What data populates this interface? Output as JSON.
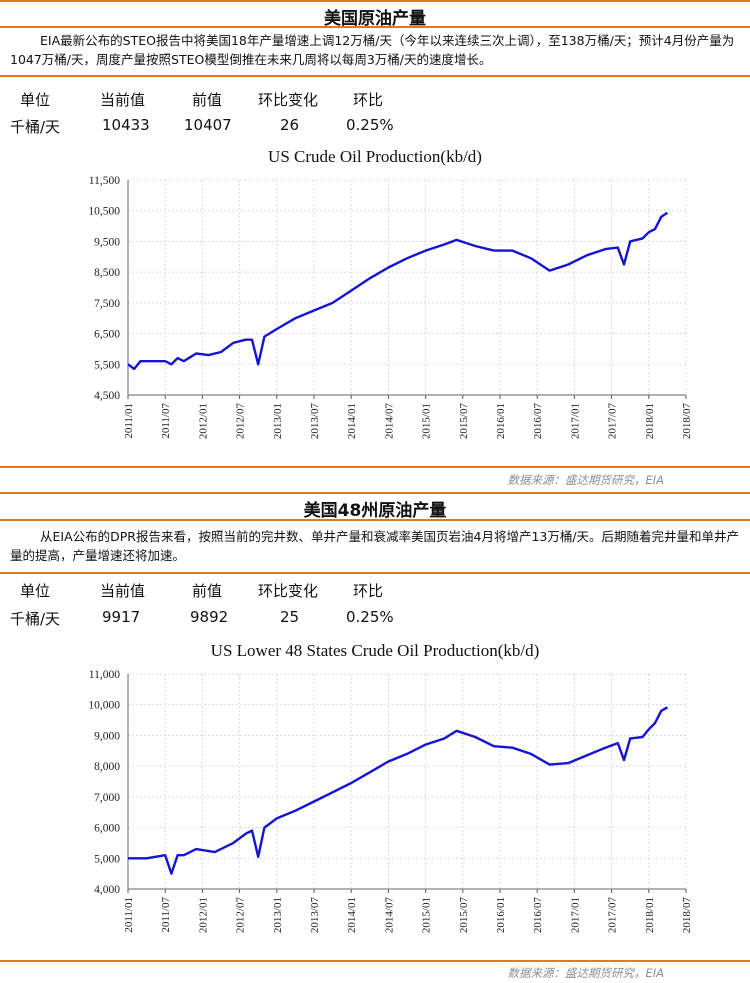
{
  "sections": [
    {
      "title": "美国原油产量",
      "description": "EIA最新公布的STEO报告中将美国18年产量增速上调12万桶/天（今年以来连续三次上调），至138万桶/天；预计4月份产量为1047万桶/天，周度产量按照STEO模型倒推在未来几周将以每周3万桶/天的速度增长。",
      "table": {
        "headers": [
          "单位",
          "当前值",
          "前值",
          "环比变化",
          "环比"
        ],
        "row": [
          "千桶/天",
          "10433",
          "10407",
          "26",
          "0.25%"
        ]
      },
      "source": "数据来源：盛达期货研究，EIA"
    },
    {
      "title": "美国48州原油产量",
      "description": "从EIA公布的DPR报告来看，按照当前的完井数、单井产量和衰减率美国页岩油4月将增产13万桶/天。后期随着完井量和单井产量的提高，产量增速还将加速。",
      "table": {
        "headers": [
          "单位",
          "当前值",
          "前值",
          "环比变化",
          "环比"
        ],
        "row": [
          "千桶/天",
          "9917",
          "9892",
          "25",
          "0.25%"
        ]
      },
      "source": "数据来源：盛达期货研究，EIA"
    }
  ],
  "colors": {
    "accent": "#e07a1f",
    "series": "#1414d2",
    "grid": "#d9d9d9"
  },
  "chart_data": [
    {
      "type": "line",
      "title": "US Crude Oil Production(kb/d)",
      "xlabel": "",
      "ylabel": "",
      "x_ticks": [
        "2011/01",
        "2011/07",
        "2012/01",
        "2012/07",
        "2013/01",
        "2013/07",
        "2014/01",
        "2014/07",
        "2015/01",
        "2015/07",
        "2016/01",
        "2016/07",
        "2017/01",
        "2017/07",
        "2018/01",
        "2018/07"
      ],
      "y_ticks": [
        "4,500",
        "5,500",
        "6,500",
        "7,500",
        "8,500",
        "9,500",
        "10,500",
        "11,500"
      ],
      "ylim": [
        4500,
        11500
      ],
      "xlim": [
        "2011/01",
        "2018/07"
      ],
      "grid": true,
      "series": [
        {
          "x": [
            "2011/01",
            "2011/02",
            "2011/03",
            "2011/05",
            "2011/07",
            "2011/08",
            "2011/09",
            "2011/10",
            "2011/12",
            "2012/02",
            "2012/04",
            "2012/06",
            "2012/08",
            "2012/09",
            "2012/10",
            "2012/11",
            "2013/01",
            "2013/04",
            "2013/07",
            "2013/10",
            "2014/01",
            "2014/04",
            "2014/07",
            "2014/10",
            "2015/01",
            "2015/04",
            "2015/06",
            "2015/09",
            "2015/12",
            "2016/03",
            "2016/06",
            "2016/09",
            "2016/12",
            "2017/03",
            "2017/06",
            "2017/08",
            "2017/09",
            "2017/10",
            "2017/12",
            "2018/01",
            "2018/02",
            "2018/03",
            "2018/04"
          ],
          "y": [
            5500,
            5350,
            5600,
            5600,
            5600,
            5500,
            5700,
            5600,
            5850,
            5800,
            5900,
            6200,
            6300,
            6300,
            5500,
            6400,
            6650,
            7000,
            7250,
            7500,
            7900,
            8300,
            8650,
            8950,
            9200,
            9400,
            9550,
            9350,
            9200,
            9200,
            8950,
            8550,
            8750,
            9050,
            9250,
            9300,
            8750,
            9500,
            9600,
            9800,
            9900,
            10300,
            10433
          ]
        }
      ]
    },
    {
      "type": "line",
      "title": "US Lower 48 States Crude Oil Production(kb/d)",
      "xlabel": "",
      "ylabel": "",
      "x_ticks": [
        "2011/01",
        "2011/07",
        "2012/01",
        "2012/07",
        "2013/01",
        "2013/07",
        "2014/01",
        "2014/07",
        "2015/01",
        "2015/07",
        "2016/01",
        "2016/07",
        "2017/01",
        "2017/07",
        "2018/01",
        "2018/07"
      ],
      "y_ticks": [
        "4,000",
        "5,000",
        "6,000",
        "7,000",
        "8,000",
        "9,000",
        "10,000",
        "11,000"
      ],
      "ylim": [
        4000,
        11000
      ],
      "xlim": [
        "2011/01",
        "2018/07"
      ],
      "grid": true,
      "series": [
        {
          "x": [
            "2011/01",
            "2011/04",
            "2011/07",
            "2011/08",
            "2011/09",
            "2011/10",
            "2011/12",
            "2012/03",
            "2012/06",
            "2012/08",
            "2012/09",
            "2012/10",
            "2012/11",
            "2013/01",
            "2013/04",
            "2013/07",
            "2013/10",
            "2014/01",
            "2014/04",
            "2014/07",
            "2014/10",
            "2015/01",
            "2015/04",
            "2015/06",
            "2015/09",
            "2015/12",
            "2016/03",
            "2016/06",
            "2016/09",
            "2016/12",
            "2017/03",
            "2017/06",
            "2017/08",
            "2017/09",
            "2017/10",
            "2017/12",
            "2018/01",
            "2018/02",
            "2018/03",
            "2018/04"
          ],
          "y": [
            5000,
            5000,
            5100,
            4500,
            5100,
            5100,
            5300,
            5200,
            5500,
            5800,
            5900,
            5050,
            6000,
            6300,
            6550,
            6850,
            7150,
            7450,
            7800,
            8150,
            8400,
            8700,
            8900,
            9150,
            8950,
            8650,
            8600,
            8400,
            8050,
            8100,
            8350,
            8600,
            8750,
            8200,
            8900,
            8950,
            9200,
            9400,
            9800,
            9917
          ]
        }
      ]
    }
  ]
}
